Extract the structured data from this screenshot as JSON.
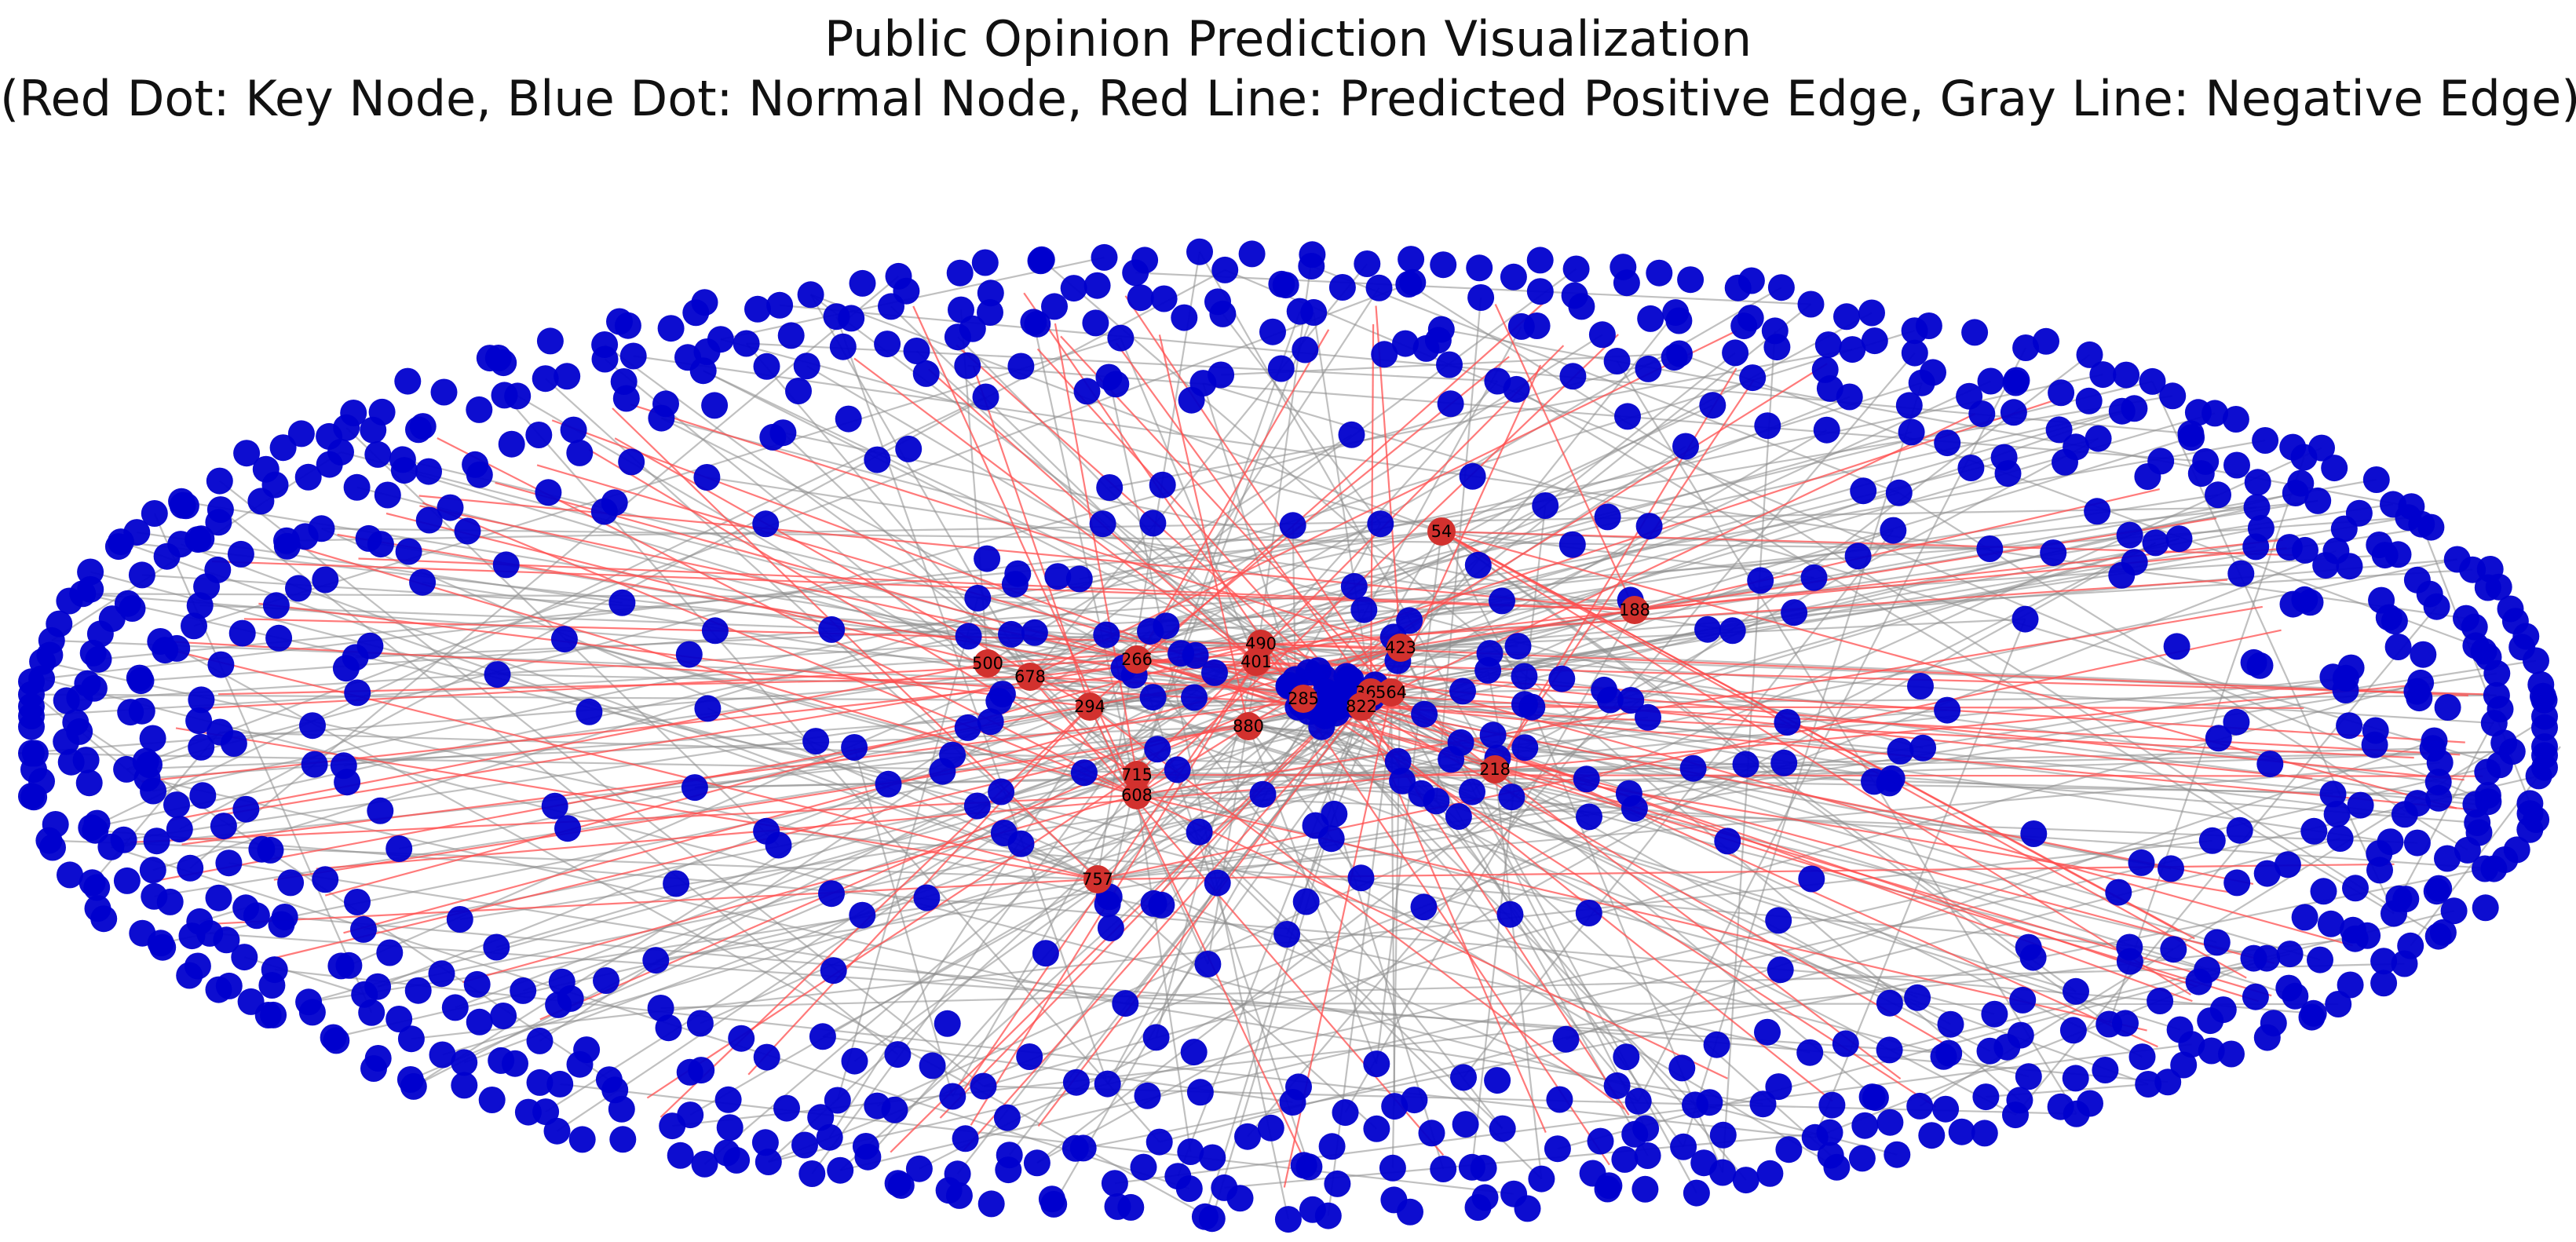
{
  "title": "Public Opinion Prediction Visualization",
  "subtitle": "(Red Dot: Key Node, Blue Dot: Normal Node, Red Line: Predicted Positive Edge, Gray Line: Negative Edge)",
  "colors": {
    "key_node": "#d2312e",
    "normal_node": "#0000cd",
    "positive_edge": "#ff4d4d",
    "negative_edge": "#8c8c8c",
    "background": "#ffffff"
  },
  "key_nodes": [
    {
      "id": "54"
    },
    {
      "id": "188"
    },
    {
      "id": "423"
    },
    {
      "id": "490"
    },
    {
      "id": "401"
    },
    {
      "id": "266"
    },
    {
      "id": "500"
    },
    {
      "id": "678"
    },
    {
      "id": "294"
    },
    {
      "id": "285"
    },
    {
      "id": "880"
    },
    {
      "id": "365"
    },
    {
      "id": "564"
    },
    {
      "id": "822"
    },
    {
      "id": "218"
    },
    {
      "id": "715"
    },
    {
      "id": "608"
    },
    {
      "id": "757"
    }
  ]
}
